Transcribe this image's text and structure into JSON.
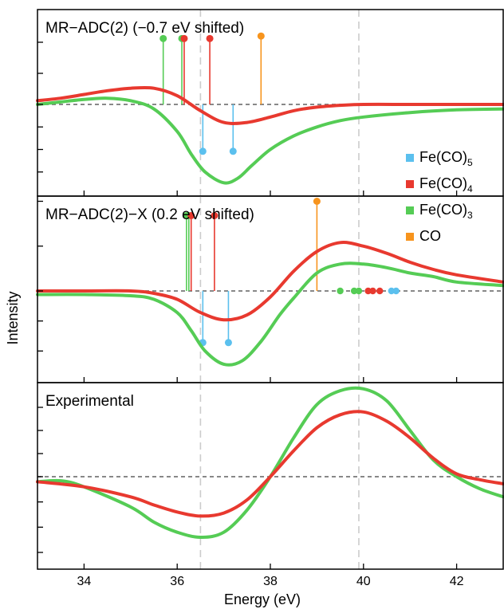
{
  "chart_data": {
    "type": "line",
    "ylabel": "Intensity",
    "xlabel": "Energy (eV)",
    "xlim": [
      33,
      43
    ],
    "x_ticks": [
      34,
      36,
      38,
      40,
      42
    ],
    "x_tick_labels": [
      "34",
      "36",
      "38",
      "40",
      "42"
    ],
    "grid": false,
    "reference_lines_x": [
      36.5,
      39.9
    ],
    "legend": {
      "placement": "right, spanning top and middle panels",
      "entries": [
        {
          "key": "FeCO5",
          "base": "Fe(CO)",
          "sub": "5",
          "color": "#5bc0ee"
        },
        {
          "key": "FeCO4",
          "base": "Fe(CO)",
          "sub": "4",
          "color": "#e8392f"
        },
        {
          "key": "FeCO3",
          "base": "Fe(CO)",
          "sub": "3",
          "color": "#55cc55"
        },
        {
          "key": "CO",
          "base": "CO",
          "sub": "",
          "color": "#f7941d"
        }
      ]
    },
    "colors": {
      "FeCO5": "#5bc0ee",
      "FeCO4": "#e8392f",
      "FeCO3": "#55cc55",
      "CO": "#f7941d",
      "baseline": "#777777",
      "reference": "#cccccc"
    },
    "panels": [
      {
        "title": "MR−ADC(2) (−0.7 eV shifted)",
        "ylim": [
          -1.0,
          0.75
        ],
        "series": [
          {
            "key": "FeCO4",
            "x": [
              33,
              33.5,
              34,
              34.5,
              35,
              35.5,
              36,
              36.5,
              37,
              37.5,
              38,
              38.5,
              39,
              39.5,
              40,
              41,
              42,
              43
            ],
            "y": [
              0.03,
              0.05,
              0.08,
              0.11,
              0.13,
              0.13,
              0.07,
              -0.07,
              -0.2,
              -0.2,
              -0.14,
              -0.07,
              -0.03,
              -0.01,
              0.0,
              0.0,
              0.0,
              0.0
            ]
          },
          {
            "key": "FeCO3",
            "x": [
              33,
              33.5,
              34,
              34.5,
              35,
              35.5,
              36,
              36.3,
              36.6,
              37,
              37.3,
              37.6,
              38,
              38.5,
              39,
              39.5,
              40,
              41,
              42,
              43
            ],
            "y": [
              0.0,
              0.02,
              0.04,
              0.05,
              0.03,
              -0.05,
              -0.3,
              -0.55,
              -0.75,
              -0.87,
              -0.82,
              -0.68,
              -0.5,
              -0.35,
              -0.25,
              -0.18,
              -0.14,
              -0.09,
              -0.06,
              -0.05
            ]
          }
        ],
        "sticks": [
          {
            "key": "FeCO3",
            "x": 35.7,
            "y": 0.53
          },
          {
            "key": "FeCO3",
            "x": 36.1,
            "y": 0.53
          },
          {
            "key": "FeCO4",
            "x": 36.15,
            "y": 0.53
          },
          {
            "key": "FeCO4",
            "x": 36.7,
            "y": 0.53
          },
          {
            "key": "CO",
            "x": 37.8,
            "y": 0.55
          },
          {
            "key": "FeCO5",
            "x": 36.55,
            "y": -0.52
          },
          {
            "key": "FeCO5",
            "x": 37.2,
            "y": -0.52
          }
        ]
      },
      {
        "title": "MR−ADC(2)−X (0.2 eV shifted)",
        "ylim": [
          -0.75,
          0.52
        ],
        "series": [
          {
            "key": "FeCO4",
            "x": [
              33,
              34,
              35,
              35.5,
              36,
              36.5,
              37,
              37.5,
              38,
              38.5,
              39,
              39.5,
              40,
              40.5,
              41,
              41.5,
              42,
              43
            ],
            "y": [
              0.0,
              0.0,
              0.0,
              -0.02,
              -0.07,
              -0.18,
              -0.24,
              -0.2,
              -0.05,
              0.11,
              0.22,
              0.27,
              0.25,
              0.21,
              0.16,
              0.12,
              0.09,
              0.05
            ]
          },
          {
            "key": "FeCO3",
            "x": [
              33,
              34,
              35,
              35.5,
              36,
              36.3,
              36.6,
              37,
              37.4,
              37.8,
              38.2,
              38.5,
              39,
              39.5,
              40,
              40.5,
              41,
              41.5,
              42,
              43
            ],
            "y": [
              -0.03,
              -0.03,
              -0.04,
              -0.07,
              -0.18,
              -0.33,
              -0.5,
              -0.61,
              -0.58,
              -0.42,
              -0.2,
              -0.06,
              0.1,
              0.15,
              0.15,
              0.13,
              0.1,
              0.08,
              0.05,
              0.03
            ]
          }
        ],
        "sticks": [
          {
            "key": "FeCO3",
            "x": 36.2,
            "y": 0.42
          },
          {
            "key": "FeCO3",
            "x": 36.25,
            "y": 0.42
          },
          {
            "key": "FeCO4",
            "x": 36.3,
            "y": 0.42
          },
          {
            "key": "FeCO4",
            "x": 36.8,
            "y": 0.42
          },
          {
            "key": "CO",
            "x": 39.0,
            "y": 0.5
          },
          {
            "key": "FeCO5",
            "x": 36.55,
            "y": -0.43
          },
          {
            "key": "FeCO5",
            "x": 37.1,
            "y": -0.43
          }
        ],
        "dots": [
          {
            "key": "FeCO3",
            "x": 39.5
          },
          {
            "key": "FeCO3",
            "x": 39.8
          },
          {
            "key": "FeCO3",
            "x": 39.9
          },
          {
            "key": "FeCO4",
            "x": 40.1
          },
          {
            "key": "FeCO4",
            "x": 40.2
          },
          {
            "key": "FeCO4",
            "x": 40.35
          },
          {
            "key": "FeCO5",
            "x": 40.6
          },
          {
            "key": "FeCO5",
            "x": 40.7
          }
        ]
      },
      {
        "title": "Experimental",
        "ylim": [
          -0.9,
          1.0
        ],
        "series": [
          {
            "key": "FeCO4",
            "x": [
              33,
              34,
              35,
              35.5,
              36,
              36.5,
              37,
              37.5,
              38,
              38.5,
              39,
              39.5,
              40,
              40.5,
              41,
              41.5,
              42,
              42.5,
              43
            ],
            "y": [
              -0.05,
              -0.1,
              -0.2,
              -0.28,
              -0.35,
              -0.39,
              -0.36,
              -0.23,
              0.0,
              0.28,
              0.53,
              0.67,
              0.7,
              0.6,
              0.42,
              0.2,
              0.03,
              -0.03,
              -0.07
            ]
          },
          {
            "key": "FeCO3",
            "x": [
              33,
              33.5,
              34,
              35,
              35.5,
              36,
              36.5,
              37,
              37.5,
              38,
              38.5,
              39,
              39.5,
              40,
              40.5,
              41,
              41.5,
              42,
              42.5,
              43
            ],
            "y": [
              -0.05,
              -0.04,
              -0.1,
              -0.3,
              -0.45,
              -0.55,
              -0.6,
              -0.55,
              -0.33,
              0.0,
              0.42,
              0.78,
              0.93,
              0.95,
              0.82,
              0.5,
              0.18,
              0.0,
              -0.12,
              -0.2
            ]
          }
        ]
      }
    ]
  }
}
